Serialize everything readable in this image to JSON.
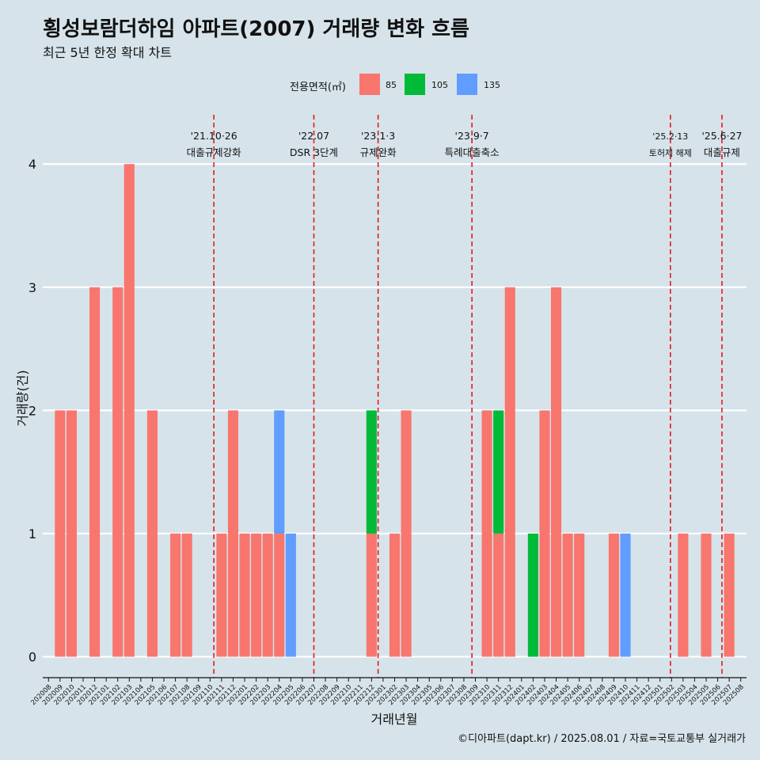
{
  "title": "횡성보람더하임 아파트(2007) 거래량 변화 흐름",
  "subtitle": "최근 5년 한정 확대 차트",
  "caption": "©디아파트(dapt.kr) / 2025.08.01 / 자료=국토교통부 실거래가",
  "legend": {
    "title": "전용면적(㎡)",
    "items": [
      {
        "label": "85",
        "color": "#f8766d"
      },
      {
        "label": "105",
        "color": "#00ba38"
      },
      {
        "label": "135",
        "color": "#619cff"
      }
    ]
  },
  "chart_data": {
    "type": "bar",
    "stacked": true,
    "xlabel": "거래년월",
    "ylabel": "거래량(건)",
    "ylim": [
      -0.17,
      4.4
    ],
    "yticks": [
      0,
      1,
      2,
      3,
      4
    ],
    "grid": "horizontal",
    "legend_position": "top",
    "categories": [
      "202008",
      "202009",
      "202010",
      "202011",
      "202012",
      "202101",
      "202102",
      "202103",
      "202104",
      "202105",
      "202106",
      "202107",
      "202108",
      "202109",
      "202110",
      "202111",
      "202112",
      "202201",
      "202202",
      "202203",
      "202204",
      "202205",
      "202206",
      "202207",
      "202208",
      "202209",
      "202210",
      "202211",
      "202212",
      "202301",
      "202302",
      "202303",
      "202304",
      "202305",
      "202306",
      "202307",
      "202308",
      "202309",
      "202310",
      "202311",
      "202312",
      "202401",
      "202402",
      "202403",
      "202404",
      "202405",
      "202406",
      "202407",
      "202408",
      "202409",
      "202410",
      "202411",
      "202412",
      "202501",
      "202502",
      "202503",
      "202504",
      "202505",
      "202506",
      "202507",
      "202508"
    ],
    "series": [
      {
        "name": "85",
        "color": "#f8766d",
        "values": [
          0,
          2,
          2,
          0,
          3,
          0,
          3,
          4,
          0,
          2,
          0,
          1,
          1,
          0,
          0,
          1,
          2,
          1,
          1,
          1,
          1,
          0,
          0,
          0,
          0,
          0,
          0,
          0,
          1,
          0,
          1,
          2,
          0,
          0,
          0,
          0,
          0,
          0,
          2,
          1,
          3,
          0,
          0,
          2,
          3,
          1,
          1,
          0,
          0,
          1,
          0,
          0,
          0,
          0,
          0,
          1,
          0,
          1,
          0,
          1,
          0
        ]
      },
      {
        "name": "105",
        "color": "#00ba38",
        "values": [
          0,
          0,
          0,
          0,
          0,
          0,
          0,
          0,
          0,
          0,
          0,
          0,
          0,
          0,
          0,
          0,
          0,
          0,
          0,
          0,
          0,
          0,
          0,
          0,
          0,
          0,
          0,
          0,
          1,
          0,
          0,
          0,
          0,
          0,
          0,
          0,
          0,
          0,
          0,
          1,
          0,
          0,
          1,
          0,
          0,
          0,
          0,
          0,
          0,
          0,
          0,
          0,
          0,
          0,
          0,
          0,
          0,
          0,
          0,
          0,
          0
        ]
      },
      {
        "name": "135",
        "color": "#619cff",
        "values": [
          0,
          0,
          0,
          0,
          0,
          0,
          0,
          0,
          0,
          0,
          0,
          0,
          0,
          0,
          0,
          0,
          0,
          0,
          0,
          0,
          1,
          1,
          0,
          0,
          0,
          0,
          0,
          0,
          0,
          0,
          0,
          0,
          0,
          0,
          0,
          0,
          0,
          0,
          0,
          0,
          0,
          0,
          0,
          0,
          0,
          0,
          0,
          0,
          0,
          0,
          1,
          0,
          0,
          0,
          0,
          0,
          0,
          0,
          0,
          0,
          0
        ]
      }
    ],
    "annotations": [
      {
        "date": "2021-10-26",
        "x": "202110",
        "line1": "'21.10·26",
        "line2": "대출규제강화"
      },
      {
        "date": "2022-07",
        "x": "202207",
        "line1": "'22.07",
        "line2": "DSR 3단계"
      },
      {
        "date": "2023-01-03",
        "x": "202301",
        "line1": "'23.1·3",
        "line2": "규제완화"
      },
      {
        "date": "2023-09-07",
        "x": "202309",
        "line1": "'23.9·7",
        "line2": "특례대출축소"
      },
      {
        "date": "2025-02-13",
        "x": "202502",
        "line1": "'25.2·13",
        "line2": "토허제 해제"
      },
      {
        "date": "2025-06-27",
        "x": "202506",
        "line1": "'25.6·27",
        "line2": "대출규제"
      }
    ]
  }
}
